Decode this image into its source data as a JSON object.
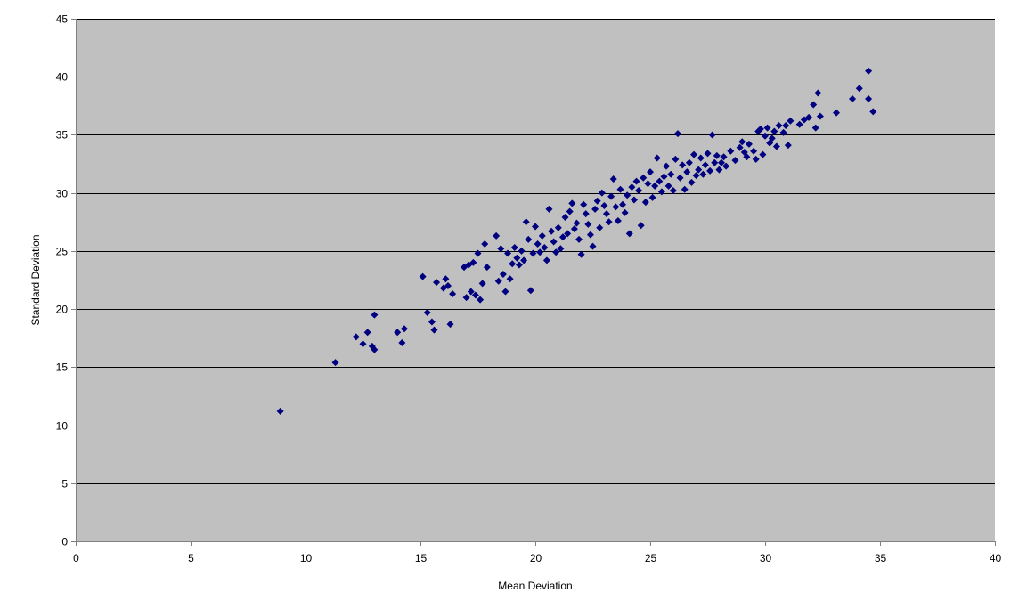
{
  "chart_data": {
    "type": "scatter",
    "title": "",
    "xlabel": "Mean Deviation",
    "ylabel": "Standard Deviation",
    "xlim": [
      0,
      40
    ],
    "ylim": [
      0,
      45
    ],
    "x_ticks": [
      "0",
      "5",
      "10",
      "15",
      "20",
      "25",
      "30",
      "35",
      "40"
    ],
    "y_ticks": [
      "0",
      "5",
      "10",
      "15",
      "20",
      "25",
      "30",
      "35",
      "40",
      "45"
    ],
    "grid": "horizontal",
    "legend": "none",
    "colors": {
      "plot_background": "#c0c0c0",
      "marker": "#000080",
      "gridline": "#000000"
    },
    "marker_shape": "diamond",
    "points": [
      [
        8.9,
        11.2
      ],
      [
        11.3,
        15.4
      ],
      [
        12.2,
        17.6
      ],
      [
        12.5,
        17.0
      ],
      [
        12.7,
        18.0
      ],
      [
        12.9,
        16.8
      ],
      [
        13.0,
        19.5
      ],
      [
        13.0,
        16.5
      ],
      [
        14.0,
        18.0
      ],
      [
        14.2,
        17.1
      ],
      [
        14.3,
        18.3
      ],
      [
        15.1,
        22.8
      ],
      [
        15.3,
        19.7
      ],
      [
        15.5,
        18.9
      ],
      [
        15.6,
        18.2
      ],
      [
        15.7,
        22.3
      ],
      [
        16.0,
        21.8
      ],
      [
        16.1,
        22.6
      ],
      [
        16.2,
        22.0
      ],
      [
        16.3,
        18.7
      ],
      [
        16.4,
        21.3
      ],
      [
        16.9,
        23.6
      ],
      [
        17.0,
        21.0
      ],
      [
        17.1,
        23.8
      ],
      [
        17.2,
        21.5
      ],
      [
        17.3,
        24.0
      ],
      [
        17.4,
        21.2
      ],
      [
        17.5,
        24.8
      ],
      [
        17.6,
        20.8
      ],
      [
        17.7,
        22.2
      ],
      [
        17.8,
        25.6
      ],
      [
        17.9,
        23.6
      ],
      [
        18.3,
        26.3
      ],
      [
        18.4,
        22.4
      ],
      [
        18.5,
        25.2
      ],
      [
        18.6,
        23.0
      ],
      [
        18.7,
        21.5
      ],
      [
        18.8,
        24.8
      ],
      [
        18.9,
        22.6
      ],
      [
        19.0,
        23.9
      ],
      [
        19.1,
        25.3
      ],
      [
        19.2,
        24.4
      ],
      [
        19.3,
        23.8
      ],
      [
        19.4,
        25.0
      ],
      [
        19.5,
        24.2
      ],
      [
        19.6,
        27.5
      ],
      [
        19.7,
        26.0
      ],
      [
        19.8,
        21.6
      ],
      [
        19.9,
        24.8
      ],
      [
        20.0,
        27.1
      ],
      [
        20.1,
        25.6
      ],
      [
        20.2,
        24.9
      ],
      [
        20.3,
        26.3
      ],
      [
        20.4,
        25.3
      ],
      [
        20.5,
        24.2
      ],
      [
        20.6,
        28.6
      ],
      [
        20.7,
        26.7
      ],
      [
        20.8,
        25.8
      ],
      [
        20.9,
        24.9
      ],
      [
        21.0,
        27.0
      ],
      [
        21.1,
        25.2
      ],
      [
        21.2,
        26.2
      ],
      [
        21.3,
        27.9
      ],
      [
        21.4,
        26.5
      ],
      [
        21.5,
        28.4
      ],
      [
        21.6,
        29.1
      ],
      [
        21.7,
        26.9
      ],
      [
        21.8,
        27.4
      ],
      [
        21.9,
        26.0
      ],
      [
        22.0,
        24.7
      ],
      [
        22.1,
        29.0
      ],
      [
        22.2,
        28.2
      ],
      [
        22.3,
        27.3
      ],
      [
        22.4,
        26.4
      ],
      [
        22.5,
        25.4
      ],
      [
        22.6,
        28.6
      ],
      [
        22.7,
        29.3
      ],
      [
        22.8,
        27.0
      ],
      [
        22.9,
        30.0
      ],
      [
        23.0,
        28.9
      ],
      [
        23.1,
        28.2
      ],
      [
        23.2,
        27.5
      ],
      [
        23.3,
        29.7
      ],
      [
        23.4,
        31.2
      ],
      [
        23.5,
        28.8
      ],
      [
        23.6,
        27.6
      ],
      [
        23.7,
        30.3
      ],
      [
        23.8,
        29.0
      ],
      [
        23.9,
        28.3
      ],
      [
        24.0,
        29.8
      ],
      [
        24.1,
        26.5
      ],
      [
        24.2,
        30.5
      ],
      [
        24.3,
        29.4
      ],
      [
        24.4,
        31.0
      ],
      [
        24.5,
        30.2
      ],
      [
        24.6,
        27.2
      ],
      [
        24.7,
        31.3
      ],
      [
        24.8,
        29.2
      ],
      [
        24.9,
        30.8
      ],
      [
        25.0,
        31.8
      ],
      [
        25.1,
        29.6
      ],
      [
        25.2,
        30.6
      ],
      [
        25.3,
        33.0
      ],
      [
        25.4,
        31.0
      ],
      [
        25.5,
        30.1
      ],
      [
        25.6,
        31.4
      ],
      [
        25.7,
        32.3
      ],
      [
        25.8,
        30.6
      ],
      [
        25.9,
        31.6
      ],
      [
        26.0,
        30.2
      ],
      [
        26.1,
        32.9
      ],
      [
        26.2,
        35.1
      ],
      [
        26.3,
        31.3
      ],
      [
        26.4,
        32.4
      ],
      [
        26.5,
        30.3
      ],
      [
        26.6,
        31.8
      ],
      [
        26.7,
        32.6
      ],
      [
        26.8,
        30.9
      ],
      [
        26.9,
        33.3
      ],
      [
        27.0,
        31.5
      ],
      [
        27.1,
        32.0
      ],
      [
        27.2,
        33.0
      ],
      [
        27.3,
        31.6
      ],
      [
        27.4,
        32.4
      ],
      [
        27.5,
        33.4
      ],
      [
        27.6,
        31.9
      ],
      [
        27.7,
        35.0
      ],
      [
        27.8,
        32.6
      ],
      [
        27.9,
        33.2
      ],
      [
        28.0,
        32.0
      ],
      [
        28.1,
        32.6
      ],
      [
        28.2,
        33.1
      ],
      [
        28.3,
        32.3
      ],
      [
        28.5,
        33.6
      ],
      [
        28.7,
        32.8
      ],
      [
        28.9,
        33.9
      ],
      [
        29.0,
        34.4
      ],
      [
        29.1,
        33.5
      ],
      [
        29.2,
        33.1
      ],
      [
        29.3,
        34.2
      ],
      [
        29.5,
        33.6
      ],
      [
        29.6,
        32.9
      ],
      [
        29.7,
        35.3
      ],
      [
        29.8,
        35.5
      ],
      [
        29.9,
        33.3
      ],
      [
        30.0,
        34.9
      ],
      [
        30.1,
        35.6
      ],
      [
        30.2,
        34.3
      ],
      [
        30.3,
        34.7
      ],
      [
        30.4,
        35.3
      ],
      [
        30.5,
        34.0
      ],
      [
        30.6,
        35.8
      ],
      [
        30.8,
        35.2
      ],
      [
        30.9,
        35.8
      ],
      [
        31.0,
        34.1
      ],
      [
        31.1,
        36.2
      ],
      [
        31.5,
        35.9
      ],
      [
        31.7,
        36.3
      ],
      [
        31.9,
        36.5
      ],
      [
        32.1,
        37.6
      ],
      [
        32.2,
        35.6
      ],
      [
        32.3,
        38.6
      ],
      [
        32.4,
        36.6
      ],
      [
        33.1,
        36.9
      ],
      [
        33.8,
        38.1
      ],
      [
        34.1,
        39.0
      ],
      [
        34.5,
        40.5
      ],
      [
        34.5,
        38.1
      ],
      [
        34.7,
        37.0
      ]
    ]
  }
}
